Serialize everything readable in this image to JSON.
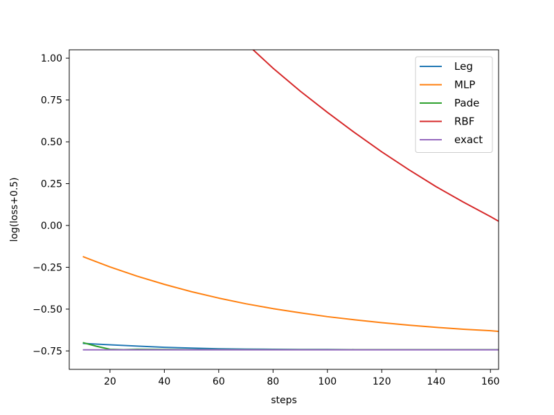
{
  "chart_data": {
    "type": "line",
    "title": "",
    "xlabel": "steps",
    "ylabel": "log(loss+0.5)",
    "xlim": [
      5,
      163
    ],
    "ylim": [
      -0.86,
      1.05
    ],
    "xticks": [
      20,
      40,
      60,
      80,
      100,
      120,
      140,
      160
    ],
    "xtick_labels": [
      "20",
      "40",
      "60",
      "80",
      "100",
      "120",
      "140",
      "160"
    ],
    "yticks": [
      -0.75,
      -0.5,
      -0.25,
      0.0,
      0.25,
      0.5,
      0.75,
      1.0
    ],
    "ytick_labels": [
      "−0.75",
      "−0.50",
      "−0.25",
      "0.00",
      "0.25",
      "0.50",
      "0.75",
      "1.00"
    ],
    "grid": false,
    "legend_position": "top-right",
    "series": [
      {
        "name": "Leg",
        "color": "#1f77b4",
        "x": [
          10,
          20,
          30,
          40,
          50,
          60,
          70,
          80,
          90,
          100,
          110,
          120,
          130,
          140,
          150,
          160,
          163
        ],
        "y": [
          -0.705,
          -0.713,
          -0.721,
          -0.728,
          -0.733,
          -0.737,
          -0.739,
          -0.74,
          -0.741,
          -0.741,
          -0.742,
          -0.742,
          -0.742,
          -0.742,
          -0.742,
          -0.742,
          -0.742
        ]
      },
      {
        "name": "MLP",
        "color": "#ff7f0e",
        "x": [
          10,
          20,
          30,
          40,
          50,
          60,
          70,
          80,
          90,
          100,
          110,
          120,
          130,
          140,
          150,
          160,
          163
        ],
        "y": [
          -0.186,
          -0.248,
          -0.303,
          -0.352,
          -0.396,
          -0.434,
          -0.468,
          -0.497,
          -0.522,
          -0.545,
          -0.564,
          -0.581,
          -0.596,
          -0.609,
          -0.62,
          -0.629,
          -0.633
        ]
      },
      {
        "name": "Pade",
        "color": "#2ca02c",
        "x": [
          10,
          15,
          20,
          25,
          30,
          40,
          50,
          60,
          80,
          100,
          120,
          140,
          163
        ],
        "y": [
          -0.7,
          -0.722,
          -0.74,
          -0.742,
          -0.74,
          -0.741,
          -0.742,
          -0.742,
          -0.742,
          -0.742,
          -0.742,
          -0.742,
          -0.742
        ]
      },
      {
        "name": "RBF",
        "color": "#d62728",
        "x": [
          72,
          80,
          90,
          100,
          110,
          120,
          130,
          140,
          150,
          160,
          163
        ],
        "y": [
          1.06,
          0.94,
          0.803,
          0.676,
          0.555,
          0.44,
          0.333,
          0.232,
          0.14,
          0.053,
          0.025
        ]
      },
      {
        "name": "exact",
        "color": "#9467bd",
        "x": [
          10,
          163
        ],
        "y": [
          -0.743,
          -0.743
        ]
      }
    ]
  }
}
